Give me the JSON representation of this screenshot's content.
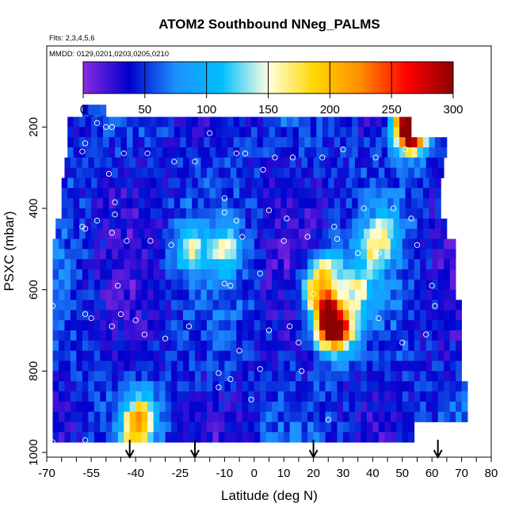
{
  "chart_data": {
    "type": "heatmap",
    "title": "ATOM2 Southbound NNeg_PALMS",
    "flights_label": "Flts: 2,3,4,5,6",
    "dates_label": "MMDD: 0129,0201,0203,0205,0210",
    "xlabel": "Latitude (deg N)",
    "ylabel": "PSXC (mbar)",
    "xlim": [
      -70,
      80
    ],
    "ylim": [
      1000,
      100
    ],
    "x_ticks": [
      "-70",
      "-55",
      "-40",
      "-25",
      "-10",
      "0",
      "10",
      "20",
      "30",
      "40",
      "50",
      "60",
      "70",
      "80"
    ],
    "y_ticks": [
      "200",
      "400",
      "600",
      "800",
      "1000"
    ],
    "colorbar": {
      "range": [
        0,
        300
      ],
      "ticks": [
        "0",
        "50",
        "100",
        "150",
        "200",
        "250",
        "300"
      ],
      "colors": [
        "#8a2be2",
        "#0000cd",
        "#1e90ff",
        "#00bfff",
        "#ffffe0",
        "#ffd700",
        "#ff8c00",
        "#ff0000",
        "#8b0000"
      ]
    },
    "arrows_latitude": [
      -42,
      -20,
      20,
      62
    ],
    "row_extents": [
      {
        "p": 170,
        "lat_min": -58,
        "lat_max": -50
      },
      {
        "p": 200,
        "lat_min": -63,
        "lat_max": 53
      },
      {
        "p": 250,
        "lat_min": -63,
        "lat_max": 64
      },
      {
        "p": 300,
        "lat_min": -64,
        "lat_max": 63
      },
      {
        "p": 350,
        "lat_min": -65,
        "lat_max": 63
      },
      {
        "p": 400,
        "lat_min": -65,
        "lat_max": 62
      },
      {
        "p": 450,
        "lat_min": -67,
        "lat_max": 64
      },
      {
        "p": 500,
        "lat_min": -68,
        "lat_max": 68
      },
      {
        "p": 550,
        "lat_min": -68,
        "lat_max": 68
      },
      {
        "p": 600,
        "lat_min": -68,
        "lat_max": 68
      },
      {
        "p": 650,
        "lat_min": -68,
        "lat_max": 69
      },
      {
        "p": 700,
        "lat_min": -68,
        "lat_max": 69
      },
      {
        "p": 750,
        "lat_min": -68,
        "lat_max": 70
      },
      {
        "p": 800,
        "lat_min": -68,
        "lat_max": 70
      },
      {
        "p": 850,
        "lat_min": -68,
        "lat_max": 71
      },
      {
        "p": 900,
        "lat_min": -68,
        "lat_max": 72
      },
      {
        "p": 950,
        "lat_min": -68,
        "lat_max": 54
      }
    ],
    "hotspots": [
      {
        "lat": 53,
        "p": 200,
        "value": 260
      },
      {
        "lat": 52,
        "p": 210,
        "value": 200
      },
      {
        "lat": 25,
        "p": 650,
        "value": 200
      },
      {
        "lat": 30,
        "p": 700,
        "value": 180
      },
      {
        "lat": 25,
        "p": 700,
        "value": 210
      },
      {
        "lat": 20,
        "p": 600,
        "value": 160
      },
      {
        "lat": 25,
        "p": 550,
        "value": 150
      },
      {
        "lat": 35,
        "p": 600,
        "value": 140
      },
      {
        "lat": 40,
        "p": 500,
        "value": 130
      },
      {
        "lat": -40,
        "p": 950,
        "value": 160
      },
      {
        "lat": -38,
        "p": 900,
        "value": 140
      },
      {
        "lat": -10,
        "p": 500,
        "value": 130
      },
      {
        "lat": -22,
        "p": 500,
        "value": 130
      },
      {
        "lat": 45,
        "p": 450,
        "value": 110
      }
    ],
    "samples": [
      {
        "lat": -53,
        "p": 190
      },
      {
        "lat": -50,
        "p": 200
      },
      {
        "lat": -48,
        "p": 200
      },
      {
        "lat": -57,
        "p": 240
      },
      {
        "lat": -58,
        "p": 260
      },
      {
        "lat": -44,
        "p": 265
      },
      {
        "lat": -36,
        "p": 265
      },
      {
        "lat": -27,
        "p": 285
      },
      {
        "lat": -20,
        "p": 285
      },
      {
        "lat": -15,
        "p": 215
      },
      {
        "lat": -6,
        "p": 265
      },
      {
        "lat": -3,
        "p": 265
      },
      {
        "lat": 7,
        "p": 275
      },
      {
        "lat": 13,
        "p": 275
      },
      {
        "lat": 23,
        "p": 275
      },
      {
        "lat": 30,
        "p": 255
      },
      {
        "lat": 41,
        "p": 275
      },
      {
        "lat": 51,
        "p": 255
      },
      {
        "lat": -49,
        "p": 315
      },
      {
        "lat": 3,
        "p": 305
      },
      {
        "lat": -47,
        "p": 385
      },
      {
        "lat": -10,
        "p": 375
      },
      {
        "lat": -10,
        "p": 410
      },
      {
        "lat": -6,
        "p": 430
      },
      {
        "lat": 5,
        "p": 405
      },
      {
        "lat": 11,
        "p": 425
      },
      {
        "lat": 37,
        "p": 400
      },
      {
        "lat": -47,
        "p": 415
      },
      {
        "lat": -48,
        "p": 460
      },
      {
        "lat": -53,
        "p": 430
      },
      {
        "lat": -58,
        "p": 445
      },
      {
        "lat": -57,
        "p": 450
      },
      {
        "lat": 27,
        "p": 445
      },
      {
        "lat": 47,
        "p": 400
      },
      {
        "lat": 53,
        "p": 425
      },
      {
        "lat": -43,
        "p": 480
      },
      {
        "lat": -35,
        "p": 480
      },
      {
        "lat": -28,
        "p": 490
      },
      {
        "lat": -4,
        "p": 470
      },
      {
        "lat": 10,
        "p": 480
      },
      {
        "lat": 18,
        "p": 470
      },
      {
        "lat": 28,
        "p": 475
      },
      {
        "lat": 35,
        "p": 510
      },
      {
        "lat": 42,
        "p": 510
      },
      {
        "lat": 55,
        "p": 490
      },
      {
        "lat": -46,
        "p": 590
      },
      {
        "lat": -10,
        "p": 585
      },
      {
        "lat": -8,
        "p": 590
      },
      {
        "lat": 2,
        "p": 560
      },
      {
        "lat": 20,
        "p": 610
      },
      {
        "lat": 60,
        "p": 590
      },
      {
        "lat": -68,
        "p": 640
      },
      {
        "lat": -57,
        "p": 660
      },
      {
        "lat": -55,
        "p": 670
      },
      {
        "lat": -45,
        "p": 660
      },
      {
        "lat": -40,
        "p": 675
      },
      {
        "lat": -48,
        "p": 690
      },
      {
        "lat": -37,
        "p": 710
      },
      {
        "lat": -30,
        "p": 720
      },
      {
        "lat": -22,
        "p": 690
      },
      {
        "lat": 5,
        "p": 700
      },
      {
        "lat": 12,
        "p": 690
      },
      {
        "lat": 15,
        "p": 730
      },
      {
        "lat": 33,
        "p": 650
      },
      {
        "lat": 42,
        "p": 670
      },
      {
        "lat": 50,
        "p": 730
      },
      {
        "lat": 58,
        "p": 710
      },
      {
        "lat": 61,
        "p": 640
      },
      {
        "lat": -5,
        "p": 750
      },
      {
        "lat": -12,
        "p": 805
      },
      {
        "lat": -8,
        "p": 820
      },
      {
        "lat": -12,
        "p": 840
      },
      {
        "lat": 2,
        "p": 795
      },
      {
        "lat": 16,
        "p": 800
      },
      {
        "lat": -1,
        "p": 870
      },
      {
        "lat": 25,
        "p": 920
      },
      {
        "lat": 72,
        "p": 935
      },
      {
        "lat": -68,
        "p": 975
      },
      {
        "lat": -57,
        "p": 970
      },
      {
        "lat": -55,
        "p": 990
      },
      {
        "lat": -42,
        "p": 995
      },
      {
        "lat": -30,
        "p": 995
      },
      {
        "lat": -15,
        "p": 990
      },
      {
        "lat": -10,
        "p": 995
      },
      {
        "lat": 1,
        "p": 990
      },
      {
        "lat": 6,
        "p": 995
      },
      {
        "lat": 14,
        "p": 995
      },
      {
        "lat": 25,
        "p": 990
      },
      {
        "lat": 35,
        "p": 995
      },
      {
        "lat": 45,
        "p": 995
      },
      {
        "lat": 51,
        "p": 990
      }
    ]
  }
}
